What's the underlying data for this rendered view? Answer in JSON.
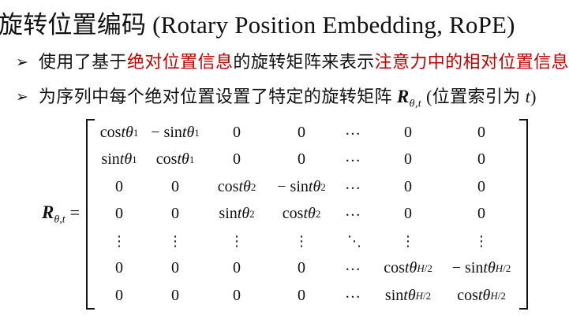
{
  "slide": {
    "title": "旋转位置编码 (Rotary Position Embedding, RoPE)",
    "bullet_marker": "➢",
    "bullets": {
      "item1": {
        "segments": [
          {
            "text": "使用了基于",
            "emphasis": false
          },
          {
            "text": "绝对位置信息",
            "emphasis": true
          },
          {
            "text": "的旋转矩阵来表示",
            "emphasis": false
          },
          {
            "text": "注意力中的相对位置信息",
            "emphasis": true
          }
        ]
      },
      "item2": {
        "prefix": "为序列中每个绝对位置设置了特定的旋转矩阵 ",
        "matrix_symbol": {
          "base": "R",
          "sub": "θ,t"
        },
        "suffix_open": " (位置索引为 ",
        "index_var": "t",
        "suffix_close": ")"
      }
    },
    "equation": {
      "lhs": {
        "base": "R",
        "sub": "θ,t",
        "equals": "="
      },
      "matrix": {
        "rows": [
          [
            "cos tθ_1",
            "− sin tθ_1",
            "0",
            "0",
            "…",
            "0",
            "0"
          ],
          [
            "sin tθ_1",
            "cos tθ_1",
            "0",
            "0",
            "…",
            "0",
            "0"
          ],
          [
            "0",
            "0",
            "cos tθ_2",
            "− sin tθ_2",
            "…",
            "0",
            "0"
          ],
          [
            "0",
            "0",
            "sin tθ_2",
            "cos tθ_2",
            "…",
            "0",
            "0"
          ],
          [
            "⋮",
            "⋮",
            "⋮",
            "⋮",
            "⋱",
            "⋮",
            "⋮"
          ],
          [
            "0",
            "0",
            "0",
            "0",
            "…",
            "cos tθ_H/2",
            "− sin tθ_H/2"
          ],
          [
            "0",
            "0",
            "0",
            "0",
            "…",
            "sin tθ_H/2",
            "cos tθ_H/2"
          ]
        ]
      }
    },
    "colors": {
      "emphasis_red": "#c00000",
      "text_black": "#111111",
      "background": "#ffffff"
    }
  }
}
